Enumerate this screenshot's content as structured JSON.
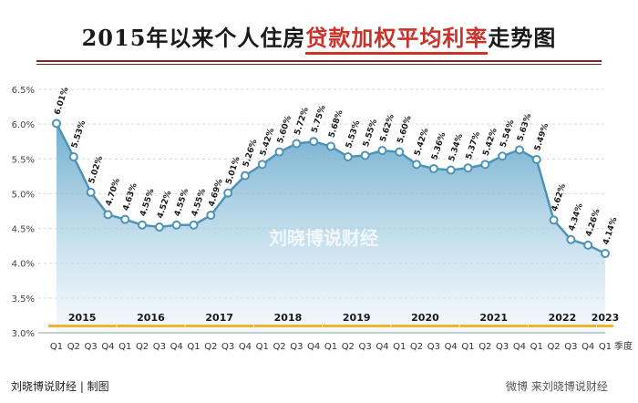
{
  "title": {
    "prefix": "2015年以来个人住房",
    "highlight": "贷款加权平均利率",
    "suffix": "走势图"
  },
  "footer": {
    "credit": "刘晓博说财经 | 制图",
    "watermark_bottom": "微博 来刘晓博说财经"
  },
  "watermark": "刘晓博说财经",
  "colors": {
    "line": "#4d93b8",
    "area_top": "#5fa4c8",
    "area_bottom": "#e8f3fa",
    "title_highlight": "#c8332c",
    "year_bar": "#f0b429"
  },
  "chart_data": {
    "type": "area",
    "x_unit_label": "季度",
    "quarters": [
      "Q1",
      "Q2",
      "Q3",
      "Q4",
      "Q1",
      "Q2",
      "Q3",
      "Q4",
      "Q1",
      "Q2",
      "Q3",
      "Q4",
      "Q1",
      "Q2",
      "Q3",
      "Q4",
      "Q1",
      "Q2",
      "Q3",
      "Q4",
      "Q1",
      "Q2",
      "Q3",
      "Q4",
      "Q1",
      "Q2",
      "Q3",
      "Q4",
      "Q1",
      "Q2",
      "Q3",
      "Q4",
      "Q1"
    ],
    "years": [
      {
        "label": "2015",
        "start": 0,
        "count": 4
      },
      {
        "label": "2016",
        "start": 4,
        "count": 4
      },
      {
        "label": "2017",
        "start": 8,
        "count": 4
      },
      {
        "label": "2018",
        "start": 12,
        "count": 4
      },
      {
        "label": "2019",
        "start": 16,
        "count": 4
      },
      {
        "label": "2020",
        "start": 20,
        "count": 4
      },
      {
        "label": "2021",
        "start": 24,
        "count": 4
      },
      {
        "label": "2022",
        "start": 28,
        "count": 4
      },
      {
        "label": "2023",
        "start": 32,
        "count": 1
      }
    ],
    "values": [
      6.01,
      5.53,
      5.02,
      4.7,
      4.63,
      4.55,
      4.52,
      4.55,
      4.55,
      4.69,
      5.01,
      5.26,
      5.42,
      5.6,
      5.72,
      5.75,
      5.68,
      5.53,
      5.55,
      5.62,
      5.6,
      5.42,
      5.36,
      5.34,
      5.37,
      5.42,
      5.54,
      5.63,
      5.49,
      4.62,
      4.34,
      4.26,
      4.14
    ],
    "data_labels": [
      "6.01%",
      "5.53%",
      "5.02%",
      "4.70%",
      "4.63%",
      "4.55%",
      "4.52%",
      "4.55%",
      "4.55%",
      "4.69%",
      "5.01%",
      "5.26%",
      "5.42%",
      "5.60%",
      "5.72%",
      "5.75%",
      "5.68%",
      "5.53%",
      "5.55%",
      "5.62%",
      "5.60%",
      "5.42%",
      "5.36%",
      "5.34%",
      "5.37%",
      "5.42%",
      "5.54%",
      "5.63%",
      "5.49%",
      "4.62%",
      "4.34%",
      "4.26%",
      "4.14%"
    ],
    "y_ticks": [
      "3.0%",
      "3.5%",
      "4.0%",
      "4.5%",
      "5.0%",
      "5.5%",
      "6.0%",
      "6.5%"
    ],
    "ylim": [
      3.0,
      6.5
    ],
    "grid": true
  }
}
